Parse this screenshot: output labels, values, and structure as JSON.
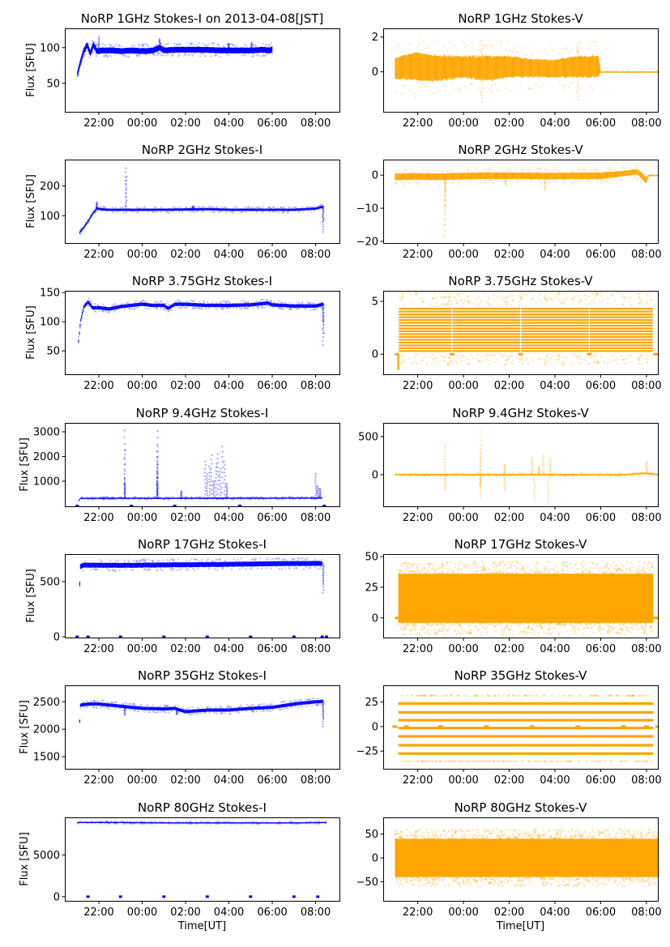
{
  "figure": {
    "xlabel": "Time[UT]",
    "ylabel": "Flux [SFU]"
  },
  "colors": {
    "stokes_i": "#0000ff",
    "stokes_v": "#ffa500"
  },
  "chart_data": [
    {
      "type": "scatter",
      "id": "1ghz-i",
      "title": "NoRP 1GHz Stokes-I on 2013-04-08[JST]",
      "xlabel": "",
      "ylabel": "Flux [SFU]",
      "color": "stokes_i",
      "xticks": [
        "22:00",
        "00:00",
        "02:00",
        "04:00",
        "06:00",
        "08:00"
      ],
      "xlim_hours_from_2000": [
        0.43,
        13.1
      ],
      "ylim": [
        10,
        127
      ],
      "yticks": [
        50,
        100
      ],
      "series": {
        "t": [
          1.0,
          1.15,
          1.3,
          1.45,
          1.6,
          1.75,
          1.9,
          2.2,
          2.6,
          3.0,
          3.5,
          4.0,
          4.5,
          4.8,
          5.0,
          5.5,
          6.0,
          6.5,
          7.0,
          7.5,
          8.0,
          8.5,
          9.0,
          9.5,
          9.9,
          10.0
        ],
        "v": [
          62,
          80,
          95,
          104,
          92,
          104,
          95,
          96,
          96,
          95,
          96,
          95,
          96,
          100,
          96,
          97,
          97,
          97,
          97,
          96,
          96,
          96,
          96,
          97,
          96,
          98
        ],
        "spread": 4,
        "spikes": [
          [
            2.0,
            115
          ],
          [
            4.8,
            112
          ],
          [
            8.0,
            105
          ],
          [
            9.05,
            107
          ]
        ]
      }
    },
    {
      "type": "scatter",
      "id": "1ghz-v",
      "title": "NoRP 1GHz Stokes-V",
      "xlabel": "",
      "ylabel": "",
      "color": "stokes_v",
      "xticks": [
        "22:00",
        "00:00",
        "02:00",
        "04:00",
        "06:00",
        "08:00"
      ],
      "xlim_hours_from_2000": [
        0.49,
        12.5
      ],
      "ylim": [
        -2.3,
        2.5
      ],
      "yticks": [
        0,
        2
      ],
      "series": {
        "t": [
          1.0,
          2.0,
          3.0,
          4.0,
          5.0,
          6.0,
          7.0,
          8.0,
          9.0,
          9.9,
          10.0,
          12.5
        ],
        "v": [
          0.2,
          0.3,
          0.2,
          0.3,
          0.2,
          0.3,
          0.2,
          0.2,
          0.3,
          0.3,
          0.0,
          0.0
        ],
        "spread": [
          0.6,
          0.8,
          0.7,
          0.6,
          0.7,
          0.6,
          0.5,
          0.5,
          0.6,
          0.6,
          0.02,
          0.02
        ],
        "spikes": [
          [
            4.8,
            1.8
          ],
          [
            4.8,
            -1.7
          ],
          [
            9.0,
            1.5
          ],
          [
            9.0,
            -1.6
          ]
        ]
      }
    },
    {
      "type": "scatter",
      "id": "2ghz-i",
      "title": "NoRP 2GHz Stokes-I",
      "xlabel": "",
      "ylabel": "Flux [SFU]",
      "color": "stokes_i",
      "xticks": [
        "22:00",
        "00:00",
        "02:00",
        "04:00",
        "06:00",
        "08:00"
      ],
      "xlim_hours_from_2000": [
        0.43,
        13.1
      ],
      "ylim": [
        8,
        289
      ],
      "yticks": [
        100,
        200
      ],
      "series": {
        "t": [
          1.1,
          1.4,
          1.7,
          1.9,
          2.1,
          2.4,
          3.0,
          4.0,
          5.0,
          6.0,
          7.0,
          8.0,
          9.0,
          10.0,
          11.0,
          12.0,
          12.3,
          12.35
        ],
        "v": [
          42,
          70,
          105,
          125,
          122,
          120,
          120,
          120,
          120,
          121,
          122,
          120,
          120,
          120,
          120,
          124,
          130,
          130
        ],
        "spread": 4,
        "spikes": [
          [
            1.9,
            145
          ],
          [
            3.25,
            260
          ],
          [
            3.25,
            230
          ],
          [
            6.35,
            132
          ],
          [
            12.35,
            45
          ],
          [
            12.35,
            80
          ]
        ]
      }
    },
    {
      "type": "scatter",
      "id": "2ghz-v",
      "title": "NoRP 2GHz Stokes-V",
      "xlabel": "",
      "ylabel": "",
      "color": "stokes_v",
      "xticks": [
        "22:00",
        "00:00",
        "02:00",
        "04:00",
        "06:00",
        "08:00"
      ],
      "xlim_hours_from_2000": [
        0.49,
        12.5
      ],
      "ylim": [
        -20.5,
        4.7
      ],
      "yticks": [
        -20,
        -10,
        0
      ],
      "series": {
        "t": [
          1.0,
          2.0,
          3.0,
          4.0,
          5.0,
          6.0,
          7.0,
          8.0,
          9.0,
          10.0,
          11.0,
          11.6,
          12.0,
          12.1,
          12.5
        ],
        "v": [
          -0.5,
          -0.4,
          -0.5,
          -0.3,
          -0.2,
          -0.2,
          -0.2,
          -0.3,
          -0.2,
          -0.2,
          0.5,
          1.0,
          -1.5,
          0.0,
          0.0
        ],
        "spread": [
          1.0,
          1.0,
          1.0,
          1.0,
          1.0,
          1.0,
          1.0,
          1.0,
          1.0,
          1.0,
          0.8,
          0.8,
          1.0,
          0.05,
          0.05
        ],
        "spikes": [
          [
            3.2,
            -5
          ],
          [
            3.2,
            -10
          ],
          [
            3.2,
            -15
          ],
          [
            3.2,
            -18.5
          ],
          [
            5.85,
            -3
          ],
          [
            7.55,
            -4.5
          ]
        ]
      }
    },
    {
      "type": "scatter",
      "id": "3.75ghz-i",
      "title": "NoRP 3.75GHz Stokes-I",
      "xlabel": "",
      "ylabel": "Flux [SFU]",
      "color": "stokes_i",
      "xticks": [
        "22:00",
        "00:00",
        "02:00",
        "04:00",
        "06:00",
        "08:00"
      ],
      "xlim_hours_from_2000": [
        0.43,
        13.1
      ],
      "ylim": [
        10,
        153
      ],
      "yticks": [
        50,
        100,
        150
      ],
      "series": {
        "t": [
          1.05,
          1.15,
          1.3,
          1.5,
          1.7,
          2.0,
          2.5,
          3.0,
          3.5,
          4.0,
          4.5,
          5.0,
          5.2,
          5.5,
          6.0,
          7.0,
          8.0,
          9.0,
          9.8,
          10.0,
          11.0,
          12.0,
          12.35
        ],
        "v": [
          60,
          100,
          125,
          134,
          124,
          124,
          122,
          126,
          128,
          130,
          128,
          128,
          123,
          130,
          130,
          128,
          128,
          129,
          132,
          129,
          127,
          127,
          130
        ],
        "spread": 3,
        "spikes": [
          [
            12.35,
            60
          ],
          [
            12.35,
            80
          ],
          [
            12.35,
            100
          ]
        ]
      }
    },
    {
      "type": "scatter",
      "id": "3.75ghz-v",
      "title": "NoRP 3.75GHz Stokes-V",
      "xlabel": "",
      "ylabel": "",
      "color": "stokes_v",
      "xticks": [
        "22:00",
        "00:00",
        "02:00",
        "04:00",
        "06:00",
        "08:00"
      ],
      "xlim_hours_from_2000": [
        0.49,
        12.5
      ],
      "ylim": [
        -1.9,
        6.0
      ],
      "yticks": [
        0,
        5
      ],
      "bands": {
        "t_start": 1.15,
        "t_end": 12.3,
        "v_min": 0.3,
        "v_max": 4.3,
        "count": 16,
        "gaps": [
          3.5,
          6.5,
          9.5
        ],
        "zero_segments": [
          [
            1.0,
            1.15
          ],
          [
            3.4,
            3.6
          ],
          [
            6.4,
            6.6
          ],
          [
            9.4,
            9.6
          ],
          [
            12.3,
            12.5
          ]
        ],
        "dip": [
          1.15,
          -1.4
        ]
      }
    },
    {
      "type": "scatter",
      "id": "9.4ghz-i",
      "title": "NoRP 9.4GHz Stokes-I",
      "xlabel": "",
      "ylabel": "Flux [SFU]",
      "color": "stokes_i",
      "xticks": [
        "22:00",
        "00:00",
        "02:00",
        "04:00",
        "06:00",
        "08:00"
      ],
      "xlim_hours_from_2000": [
        0.43,
        13.1
      ],
      "ylim": [
        -16,
        3360
      ],
      "yticks": [
        1000,
        2000,
        3000
      ],
      "series": {
        "t": [
          1.05,
          1.15,
          3.0,
          5.0,
          7.0,
          9.0,
          11.0,
          12.3
        ],
        "v": [
          200,
          310,
          315,
          310,
          315,
          315,
          320,
          320
        ],
        "spread": 20,
        "spikes": [
          [
            3.2,
            3050
          ],
          [
            3.2,
            2280
          ],
          [
            3.2,
            1100
          ],
          [
            3.2,
            900
          ],
          [
            4.7,
            3030
          ],
          [
            4.7,
            2400
          ],
          [
            4.7,
            2000
          ],
          [
            4.7,
            1700
          ],
          [
            4.7,
            1300
          ],
          [
            4.7,
            900
          ],
          [
            5.8,
            600
          ],
          [
            6.9,
            1800
          ],
          [
            7.0,
            1300
          ],
          [
            7.1,
            1600
          ],
          [
            7.2,
            2050
          ],
          [
            7.3,
            1000
          ],
          [
            7.4,
            1700
          ],
          [
            7.5,
            2100
          ],
          [
            7.6,
            1500
          ],
          [
            7.7,
            2400
          ],
          [
            7.8,
            1800
          ],
          [
            7.9,
            900
          ],
          [
            12.0,
            1300
          ],
          [
            12.1,
            800
          ],
          [
            12.2,
            700
          ]
        ],
        "zero_marks": [
          1.0,
          3.5,
          5.5,
          8.5,
          12.4
        ]
      }
    },
    {
      "type": "scatter",
      "id": "9.4ghz-v",
      "title": "NoRP 9.4GHz Stokes-V",
      "xlabel": "",
      "ylabel": "",
      "color": "stokes_v",
      "xticks": [
        "22:00",
        "00:00",
        "02:00",
        "04:00",
        "06:00",
        "08:00"
      ],
      "xlim_hours_from_2000": [
        0.49,
        12.5
      ],
      "ylim": [
        -415,
        680
      ],
      "yticks": [
        0,
        500
      ],
      "series": {
        "t": [
          1.0,
          3.0,
          5.0,
          7.0,
          9.0,
          11.0,
          12.0,
          12.5
        ],
        "v": [
          0,
          0,
          0,
          0,
          0,
          0,
          20,
          0
        ],
        "spread": 10,
        "spikes": [
          [
            3.2,
            400
          ],
          [
            3.2,
            -200
          ],
          [
            4.75,
            560
          ],
          [
            4.75,
            300
          ],
          [
            4.75,
            -150
          ],
          [
            4.75,
            -300
          ],
          [
            5.8,
            130
          ],
          [
            5.8,
            -200
          ],
          [
            7.0,
            220
          ],
          [
            7.1,
            -320
          ],
          [
            7.3,
            100
          ],
          [
            7.5,
            250
          ],
          [
            7.7,
            -380
          ],
          [
            7.8,
            200
          ],
          [
            12.0,
            160
          ]
        ]
      }
    },
    {
      "type": "scatter",
      "id": "17ghz-i",
      "title": "NoRP 17GHz Stokes-I",
      "xlabel": "",
      "ylabel": "Flux [SFU]",
      "color": "stokes_i",
      "xticks": [
        "22:00",
        "00:00",
        "02:00",
        "04:00",
        "06:00",
        "08:00"
      ],
      "xlim_hours_from_2000": [
        0.43,
        13.1
      ],
      "ylim": [
        -7,
        750
      ],
      "yticks": [
        0,
        500
      ],
      "series": {
        "t": [
          1.1,
          1.15,
          1.3,
          3.0,
          5.0,
          7.0,
          9.0,
          11.0,
          12.3
        ],
        "v": [
          400,
          640,
          650,
          648,
          652,
          655,
          660,
          665,
          665
        ],
        "spread": 22,
        "spikes": [
          [
            12.35,
            400
          ],
          [
            12.35,
            480
          ]
        ],
        "zero_marks": [
          1.0,
          1.5,
          3.0,
          5.0,
          7.0,
          9.0,
          11.0,
          12.3,
          12.5
        ]
      }
    },
    {
      "type": "scatter",
      "id": "17ghz-v",
      "title": "NoRP 17GHz Stokes-V",
      "xlabel": "",
      "ylabel": "",
      "color": "stokes_v",
      "xticks": [
        "22:00",
        "00:00",
        "02:00",
        "04:00",
        "06:00",
        "08:00"
      ],
      "xlim_hours_from_2000": [
        0.49,
        12.5
      ],
      "ylim": [
        -16,
        52
      ],
      "yticks": [
        0,
        25,
        50
      ],
      "noise_band": {
        "t_start": 1.15,
        "t_end": 12.3,
        "center": 16,
        "half_width": 20,
        "outer": 30,
        "zero_line": [
          1.0,
          12.5
        ]
      }
    },
    {
      "type": "scatter",
      "id": "35ghz-i",
      "title": "NoRP 35GHz Stokes-I",
      "xlabel": "",
      "ylabel": "Flux [SFU]",
      "color": "stokes_i",
      "xticks": [
        "22:00",
        "00:00",
        "02:00",
        "04:00",
        "06:00",
        "08:00"
      ],
      "xlim_hours_from_2000": [
        0.43,
        13.1
      ],
      "ylim": [
        1280,
        2800
      ],
      "yticks": [
        1500,
        2000,
        2500
      ],
      "series": {
        "t": [
          1.1,
          1.15,
          1.5,
          2.0,
          3.0,
          4.0,
          5.0,
          5.5,
          6.0,
          7.0,
          8.0,
          9.0,
          10.0,
          11.0,
          12.0,
          12.35
        ],
        "v": [
          2000,
          2440,
          2460,
          2460,
          2420,
          2380,
          2370,
          2380,
          2320,
          2350,
          2350,
          2380,
          2400,
          2460,
          2500,
          2510
        ],
        "spread": 30,
        "spikes": [
          [
            12.35,
            2050
          ],
          [
            12.35,
            2200
          ],
          [
            3.2,
            2260
          ],
          [
            5.6,
            2270
          ]
        ]
      }
    },
    {
      "type": "scatter",
      "id": "35ghz-v",
      "title": "NoRP 35GHz Stokes-V",
      "xlabel": "",
      "ylabel": "",
      "color": "stokes_v",
      "xticks": [
        "22:00",
        "00:00",
        "02:00",
        "04:00",
        "06:00",
        "08:00"
      ],
      "xlim_hours_from_2000": [
        0.49,
        12.5
      ],
      "ylim": [
        -43,
        42
      ],
      "yticks": [
        -25,
        0,
        25
      ],
      "levels": {
        "t_start": 1.15,
        "t_end": 12.3,
        "values": [
          23.5,
          14.5,
          6.5,
          -1.5,
          -10,
          -19,
          -27.5
        ],
        "faint_values": [
          31.5,
          -35.5
        ],
        "zero_marks": [
          1.0,
          1.5,
          3.0,
          5.0,
          7.0,
          9.0,
          11.0,
          12.0,
          12.5
        ]
      }
    },
    {
      "type": "scatter",
      "id": "80ghz-i",
      "title": "NoRP 80GHz Stokes-I",
      "xlabel": "Time[UT]",
      "ylabel": "Flux [SFU]",
      "color": "stokes_i",
      "xticks": [
        "22:00",
        "00:00",
        "02:00",
        "04:00",
        "06:00",
        "08:00"
      ],
      "xlim_hours_from_2000": [
        0.43,
        13.1
      ],
      "ylim": [
        -500,
        9500
      ],
      "yticks": [
        0,
        5000
      ],
      "series": {
        "t": [
          1.0,
          3.0,
          5.0,
          7.0,
          9.0,
          11.0,
          12.5
        ],
        "v": [
          8900,
          8900,
          8850,
          8850,
          8850,
          8850,
          8900
        ],
        "spread": 60,
        "zero_marks": [
          1.5,
          3.0,
          5.0,
          7.0,
          9.0,
          11.0,
          12.1
        ]
      }
    },
    {
      "type": "scatter",
      "id": "80ghz-v",
      "title": "NoRP 80GHz Stokes-V",
      "xlabel": "Time[UT]",
      "ylabel": "",
      "color": "stokes_v",
      "xticks": [
        "22:00",
        "00:00",
        "02:00",
        "04:00",
        "06:00",
        "08:00"
      ],
      "xlim_hours_from_2000": [
        0.49,
        12.5
      ],
      "ylim": [
        -90,
        85
      ],
      "yticks": [
        -50,
        0,
        50
      ],
      "noise_band": {
        "t_start": 1.0,
        "t_end": 12.5,
        "center": 0,
        "half_width": 40,
        "outer": 60
      }
    }
  ]
}
